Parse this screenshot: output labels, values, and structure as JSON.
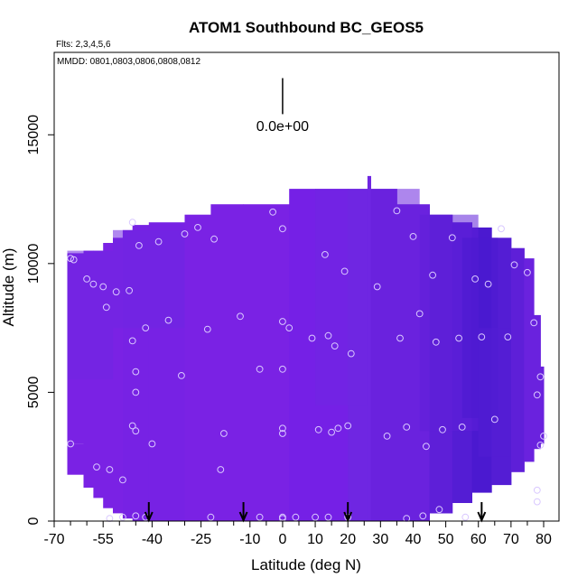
{
  "chart_data": {
    "type": "heatmap",
    "title": "ATOM1 Southbound BC_GEOS5",
    "flights_note": "Flts: 2,3,4,5,6",
    "dates_note": "MMDD: 0801,0803,0806,0808,0812",
    "xlabel": "Latitude (deg N)",
    "ylabel": "Altitude (m)",
    "xlim": [
      -70,
      80
    ],
    "ylim": [
      0,
      17500
    ],
    "x_ticks": [
      -70,
      -55,
      -40,
      -25,
      -10,
      0,
      10,
      20,
      30,
      40,
      50,
      60,
      70,
      80
    ],
    "x_tick_labels": [
      "-70",
      "-55",
      "-40",
      "-25",
      "-10",
      "0",
      "10",
      "20",
      "30",
      "40",
      "50",
      "60",
      "70",
      "80"
    ],
    "x_minor_ticks": [
      -65,
      -60,
      -50,
      -45,
      -35,
      -30,
      -20,
      -15,
      -5,
      5,
      15,
      25,
      35,
      45,
      55,
      65,
      75
    ],
    "y_ticks": [
      0,
      5000,
      10000,
      15000
    ],
    "y_tick_labels": [
      "0",
      "5000",
      "10000",
      "15000"
    ],
    "scale_bar_label": "0.0e+00",
    "scale_bar_lat": 0,
    "scale_bar_alt_range": [
      15800,
      17200
    ],
    "arrows_lat": [
      -41,
      -12,
      20,
      61
    ],
    "fill_colors": [
      "#7a22e4",
      "#7722e4",
      "#6f26e2",
      "#6a22de",
      "#5e1fd8",
      "#541dd4",
      "#4b19d0",
      "#7520e6"
    ],
    "curtain_columns": [
      {
        "lat": [
          -66,
          -61
        ],
        "alt": [
          3000,
          10400
        ],
        "c": 0
      },
      {
        "lat": [
          -66,
          -61
        ],
        "alt": [
          1800,
          3000
        ],
        "c": 0
      },
      {
        "lat": [
          -61,
          -58
        ],
        "alt": [
          1300,
          10500
        ],
        "c": 0
      },
      {
        "lat": [
          -58,
          -55
        ],
        "alt": [
          900,
          10500
        ],
        "c": 0
      },
      {
        "lat": [
          -55,
          -52
        ],
        "alt": [
          500,
          10800
        ],
        "c": 0
      },
      {
        "lat": [
          -52,
          -49
        ],
        "alt": [
          300,
          11000
        ],
        "c": 0
      },
      {
        "lat": [
          -49,
          -46
        ],
        "alt": [
          100,
          11300
        ],
        "c": 1
      },
      {
        "lat": [
          -46,
          -41
        ],
        "alt": [
          0,
          11500
        ],
        "c": 1
      },
      {
        "lat": [
          -41,
          -30
        ],
        "alt": [
          0,
          11600
        ],
        "c": 1
      },
      {
        "lat": [
          -30,
          -22
        ],
        "alt": [
          0,
          11900
        ],
        "c": 0
      },
      {
        "lat": [
          -22,
          -12
        ],
        "alt": [
          0,
          12300
        ],
        "c": 0
      },
      {
        "lat": [
          -12,
          2
        ],
        "alt": [
          0,
          12300
        ],
        "c": 0
      },
      {
        "lat": [
          2,
          10
        ],
        "alt": [
          0,
          12900
        ],
        "c": 7
      },
      {
        "lat": [
          10,
          20
        ],
        "alt": [
          0,
          12900
        ],
        "c": 7
      },
      {
        "lat": [
          20,
          26
        ],
        "alt": [
          0,
          12900
        ],
        "c": 2
      },
      {
        "lat": [
          26,
          27
        ],
        "alt": [
          0,
          13400
        ],
        "c": 2
      },
      {
        "lat": [
          27,
          35
        ],
        "alt": [
          0,
          12900
        ],
        "c": 3
      },
      {
        "lat": [
          35,
          45
        ],
        "alt": [
          0,
          12300
        ],
        "c": 3
      },
      {
        "lat": [
          45,
          52
        ],
        "alt": [
          300,
          11900
        ],
        "c": 4
      },
      {
        "lat": [
          52,
          58
        ],
        "alt": [
          700,
          11600
        ],
        "c": 5
      },
      {
        "lat": [
          58,
          64
        ],
        "alt": [
          1100,
          11400
        ],
        "c": 6
      },
      {
        "lat": [
          64,
          70
        ],
        "alt": [
          1400,
          11000
        ],
        "c": 5
      },
      {
        "lat": [
          70,
          74
        ],
        "alt": [
          1900,
          10600
        ],
        "c": 4
      },
      {
        "lat": [
          74,
          77
        ],
        "alt": [
          2300,
          10200
        ],
        "c": 3
      },
      {
        "lat": [
          77,
          79
        ],
        "alt": [
          2800,
          8000
        ],
        "c": 3
      },
      {
        "lat": [
          79,
          80
        ],
        "alt": [
          3000,
          6000
        ],
        "c": 3
      }
    ],
    "shade_patches": [
      {
        "lat": [
          -66,
          -52
        ],
        "alt": [
          5500,
          10500
        ],
        "c": 2
      },
      {
        "lat": [
          -52,
          -30
        ],
        "alt": [
          7500,
          11300
        ],
        "c": 2
      },
      {
        "lat": [
          27,
          42
        ],
        "alt": [
          4000,
          12900
        ],
        "c": 3
      },
      {
        "lat": [
          42,
          60
        ],
        "alt": [
          3500,
          11900
        ],
        "c": 4
      },
      {
        "lat": [
          55,
          66
        ],
        "alt": [
          4000,
          11000
        ],
        "c": 6
      },
      {
        "lat": [
          60,
          70
        ],
        "alt": [
          2500,
          7500
        ],
        "c": 5
      },
      {
        "lat": [
          10,
          26
        ],
        "alt": [
          4500,
          12900
        ],
        "c": 2
      }
    ],
    "points": [
      [
        -65,
        10200
      ],
      [
        -64,
        10150
      ],
      [
        -65,
        3000
      ],
      [
        -60,
        9400
      ],
      [
        -58,
        9200
      ],
      [
        -57,
        2100
      ],
      [
        -55,
        9100
      ],
      [
        -54,
        8300
      ],
      [
        -53,
        2000
      ],
      [
        -51,
        8900
      ],
      [
        -49,
        1600
      ],
      [
        -46,
        11600
      ],
      [
        -47,
        8950
      ],
      [
        -46,
        7000
      ],
      [
        -45,
        5800
      ],
      [
        -45,
        5000
      ],
      [
        -46,
        3700
      ],
      [
        -45,
        3500
      ],
      [
        -44,
        10700
      ],
      [
        -42,
        7500
      ],
      [
        -40,
        3000
      ],
      [
        -38,
        10850
      ],
      [
        -35,
        7800
      ],
      [
        -30,
        11150
      ],
      [
        -31,
        5650
      ],
      [
        -26,
        11400
      ],
      [
        -23,
        7450
      ],
      [
        -21,
        10950
      ],
      [
        -19,
        2000
      ],
      [
        -18,
        3400
      ],
      [
        -13,
        7950
      ],
      [
        -7,
        5900
      ],
      [
        -3,
        12000
      ],
      [
        0,
        11350
      ],
      [
        0,
        7750
      ],
      [
        2,
        7500
      ],
      [
        0,
        5900
      ],
      [
        0,
        3600
      ],
      [
        0,
        3400
      ],
      [
        9,
        7100
      ],
      [
        11,
        3550
      ],
      [
        13,
        10350
      ],
      [
        14,
        7200
      ],
      [
        15,
        3450
      ],
      [
        16,
        6800
      ],
      [
        17,
        3600
      ],
      [
        19,
        9700
      ],
      [
        20,
        3700
      ],
      [
        21,
        6500
      ],
      [
        29,
        9100
      ],
      [
        32,
        3300
      ],
      [
        35,
        12050
      ],
      [
        36,
        7100
      ],
      [
        38,
        3650
      ],
      [
        40,
        11050
      ],
      [
        42,
        8050
      ],
      [
        44,
        2900
      ],
      [
        46,
        9550
      ],
      [
        47,
        6950
      ],
      [
        49,
        3550
      ],
      [
        52,
        11000
      ],
      [
        54,
        7100
      ],
      [
        55,
        3650
      ],
      [
        59,
        9400
      ],
      [
        61,
        7150
      ],
      [
        63,
        9200
      ],
      [
        65,
        3950
      ],
      [
        67,
        11350
      ],
      [
        69,
        7150
      ],
      [
        71,
        9950
      ],
      [
        75,
        9650
      ],
      [
        77,
        7700
      ],
      [
        78,
        4900
      ],
      [
        79,
        5600
      ],
      [
        80,
        3300
      ],
      [
        79,
        2950
      ],
      [
        78,
        1200
      ],
      [
        78,
        750
      ],
      [
        -53,
        100
      ],
      [
        -49,
        150
      ],
      [
        -45,
        200
      ],
      [
        -42,
        150
      ],
      [
        -22,
        150
      ],
      [
        -7,
        150
      ],
      [
        0,
        150
      ],
      [
        0,
        100
      ],
      [
        4,
        150
      ],
      [
        10,
        150
      ],
      [
        14,
        150
      ],
      [
        20,
        150
      ],
      [
        38,
        100
      ],
      [
        43,
        200
      ],
      [
        48,
        450
      ],
      [
        56,
        150
      ]
    ]
  }
}
